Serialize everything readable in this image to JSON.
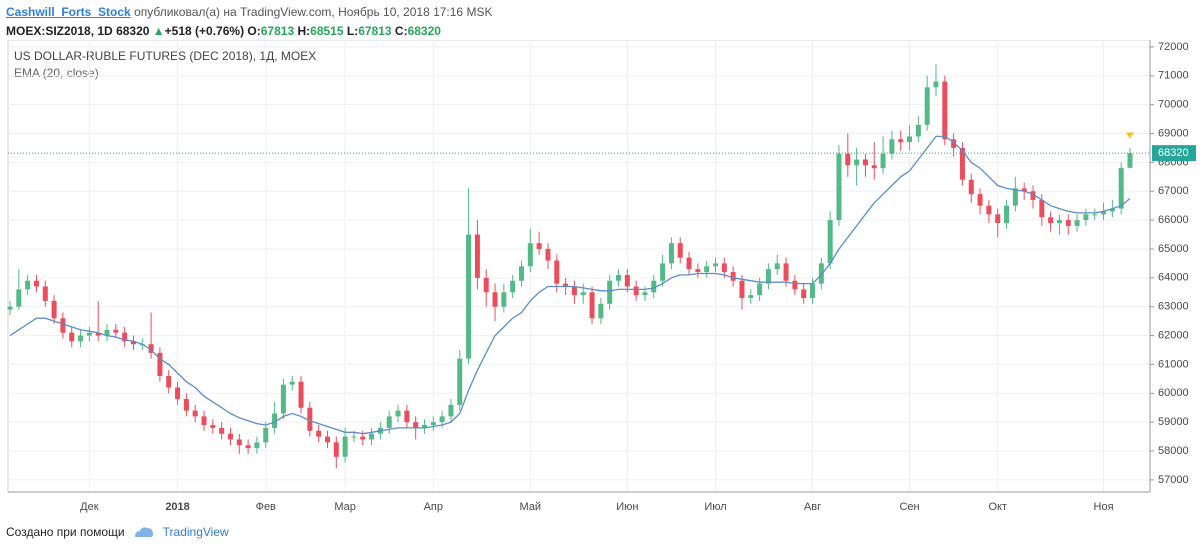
{
  "header": {
    "author": "Cashwill_Forts_Stock",
    "published": "опубликовал(а) на TradingView.com, Ноябрь 10, 2018 17:16 MSK",
    "symbol": "MOEX:SIZ2018, 1D",
    "change": "+518 (+0.76%)",
    "ohlc_labels": [
      "O:",
      "H:",
      "L:",
      "C:"
    ]
  },
  "chart_data": {
    "type": "candlestick",
    "title": "US DOLLAR-RUBLE FUTURES (DEC 2018), 1Д, MOEX",
    "categories": [
      null,
      null,
      null,
      null,
      null,
      null,
      null,
      null,
      null,
      "Дек",
      null,
      null,
      null,
      null,
      null,
      null,
      null,
      null,
      null,
      "2018",
      null,
      null,
      null,
      null,
      null,
      null,
      null,
      null,
      null,
      "Фев",
      null,
      null,
      null,
      null,
      null,
      null,
      null,
      null,
      "Мар",
      null,
      null,
      null,
      null,
      null,
      null,
      null,
      null,
      null,
      "Апр",
      null,
      null,
      null,
      null,
      null,
      null,
      null,
      null,
      null,
      null,
      "Май",
      null,
      null,
      null,
      null,
      null,
      null,
      null,
      null,
      null,
      null,
      "Июн",
      null,
      null,
      null,
      null,
      null,
      null,
      null,
      null,
      null,
      "Июл",
      null,
      null,
      null,
      null,
      null,
      null,
      null,
      null,
      null,
      null,
      "Авг",
      null,
      null,
      null,
      null,
      null,
      null,
      null,
      null,
      null,
      null,
      "Сен",
      null,
      null,
      null,
      null,
      null,
      null,
      null,
      null,
      null,
      "Окт",
      null,
      null,
      null,
      null,
      null,
      null,
      null,
      null,
      null,
      null,
      null,
      "Ноя",
      null,
      null,
      null
    ],
    "open": [
      62900,
      63000,
      63600,
      63900,
      63700,
      63200,
      62600,
      62100,
      61800,
      62000,
      62100,
      62000,
      62200,
      62100,
      61800,
      61700,
      61700,
      61400,
      60600,
      60200,
      59800,
      59400,
      59200,
      58900,
      58800,
      58600,
      58400,
      58200,
      58100,
      58300,
      58800,
      59300,
      60300,
      60400,
      59500,
      58700,
      58500,
      58300,
      57800,
      58500,
      58500,
      58400,
      58600,
      58800,
      59200,
      59400,
      59000,
      58800,
      58900,
      59000,
      59200,
      59600,
      61200,
      65500,
      64000,
      63500,
      63000,
      63500,
      63900,
      64400,
      65200,
      65000,
      64600,
      63800,
      63700,
      63400,
      63500,
      62600,
      63100,
      63900,
      64100,
      63700,
      63400,
      63500,
      63900,
      64500,
      65200,
      64700,
      64300,
      64200,
      64400,
      64500,
      64200,
      63900,
      63300,
      63400,
      63800,
      64300,
      64500,
      63900,
      63600,
      63300,
      63800,
      64500,
      66000,
      68300,
      67900,
      68100,
      67900,
      67800,
      68300,
      68800,
      68700,
      68900,
      69300,
      70600,
      70800,
      68800,
      68500,
      67400,
      66900,
      66500,
      66200,
      65900,
      66500,
      67100,
      67000,
      66700,
      66100,
      65900,
      66000,
      65800,
      66000,
      66200,
      66200,
      66300,
      66400,
      67813
    ],
    "high": [
      63200,
      64300,
      64100,
      64100,
      63900,
      63400,
      62800,
      62300,
      62200,
      62300,
      63200,
      62400,
      62400,
      62300,
      62000,
      61900,
      62800,
      61600,
      60800,
      60400,
      60000,
      59600,
      59400,
      59100,
      59000,
      58800,
      58600,
      58400,
      58500,
      59000,
      59700,
      60500,
      60600,
      60600,
      59700,
      58900,
      58700,
      58500,
      58800,
      58700,
      58700,
      58800,
      59000,
      59400,
      59600,
      59600,
      59200,
      59100,
      59200,
      59400,
      59800,
      61500,
      67100,
      66000,
      64300,
      63800,
      63800,
      64100,
      64600,
      65700,
      65600,
      65200,
      64800,
      64000,
      63900,
      63800,
      63700,
      63300,
      64100,
      64300,
      64300,
      63900,
      63700,
      64100,
      64800,
      65400,
      65400,
      64900,
      64500,
      64600,
      64700,
      64700,
      64400,
      64100,
      63600,
      64000,
      64500,
      64800,
      64700,
      64100,
      63800,
      64000,
      64700,
      66300,
      68600,
      69000,
      68500,
      68300,
      68700,
      68900,
      69100,
      69100,
      69300,
      69600,
      71000,
      71400,
      71000,
      69000,
      68700,
      67600,
      67100,
      66700,
      66400,
      66700,
      67500,
      67300,
      67200,
      66900,
      66300,
      66200,
      66200,
      66200,
      66400,
      66400,
      66600,
      66700,
      68000,
      68515
    ],
    "low": [
      62700,
      62900,
      63400,
      63500,
      63000,
      62400,
      61900,
      61600,
      61600,
      61800,
      61800,
      61800,
      61900,
      61600,
      61500,
      61500,
      61200,
      60400,
      60000,
      59600,
      59200,
      59000,
      58700,
      58600,
      58400,
      58200,
      57900,
      57900,
      57900,
      58100,
      58600,
      59100,
      60100,
      59300,
      58500,
      58300,
      58100,
      57400,
      57600,
      58300,
      58200,
      58200,
      58400,
      58600,
      59000,
      58800,
      58400,
      58600,
      58700,
      58800,
      59000,
      59400,
      61000,
      63600,
      63000,
      62500,
      62800,
      63300,
      63700,
      64200,
      64800,
      64300,
      63500,
      63400,
      63100,
      63100,
      62400,
      62400,
      62900,
      63700,
      63500,
      63200,
      63200,
      63300,
      63700,
      64300,
      64500,
      64100,
      64000,
      64000,
      64200,
      64000,
      63700,
      62900,
      63100,
      63200,
      63600,
      64100,
      63700,
      63400,
      63100,
      63100,
      63600,
      64300,
      65800,
      67500,
      67200,
      67500,
      67400,
      67600,
      68100,
      68400,
      68400,
      68700,
      69100,
      70300,
      68600,
      68200,
      67200,
      66600,
      66200,
      65900,
      65400,
      65700,
      66300,
      66700,
      66400,
      65800,
      65600,
      65500,
      65500,
      65600,
      65800,
      66000,
      66000,
      66100,
      66200,
      67813
    ],
    "close": [
      63000,
      63600,
      63900,
      63700,
      63200,
      62600,
      62100,
      61800,
      62000,
      62100,
      62000,
      62200,
      62100,
      61800,
      61700,
      61700,
      61400,
      60600,
      60200,
      59800,
      59400,
      59200,
      58900,
      58800,
      58600,
      58400,
      58200,
      58100,
      58300,
      58800,
      59300,
      60300,
      60400,
      59500,
      58700,
      58500,
      58300,
      57800,
      58500,
      58500,
      58400,
      58600,
      58800,
      59200,
      59400,
      59000,
      58800,
      58900,
      59000,
      59200,
      59600,
      61200,
      65500,
      64000,
      63500,
      63000,
      63500,
      63900,
      64400,
      65200,
      65000,
      64600,
      63800,
      63700,
      63400,
      63500,
      62600,
      63100,
      63900,
      64100,
      63700,
      63400,
      63500,
      63900,
      64500,
      65200,
      64700,
      64300,
      64200,
      64400,
      64500,
      64200,
      63900,
      63300,
      63400,
      63800,
      64300,
      64500,
      63900,
      63600,
      63300,
      63800,
      64500,
      66000,
      68300,
      67900,
      68100,
      67900,
      67800,
      68300,
      68800,
      68700,
      68900,
      69300,
      70600,
      70800,
      68800,
      68500,
      67400,
      66900,
      66500,
      66200,
      65900,
      66500,
      67100,
      67000,
      66700,
      66100,
      65900,
      66000,
      65800,
      66000,
      66200,
      66200,
      66300,
      66400,
      67802,
      68320
    ],
    "up_color": "#53b987",
    "down_color": "#eb4d5c",
    "series": [
      {
        "name": "EMA (20, close)",
        "color": "#5b8dc9",
        "values": [
          62000,
          62200,
          62400,
          62600,
          62600,
          62500,
          62400,
          62300,
          62200,
          62150,
          62100,
          62000,
          61950,
          61850,
          61800,
          61700,
          61500,
          61200,
          61000,
          60700,
          60400,
          60200,
          59900,
          59700,
          59500,
          59300,
          59150,
          59050,
          58950,
          58900,
          59000,
          59200,
          59300,
          59200,
          59050,
          58950,
          58850,
          58750,
          58650,
          58650,
          58600,
          58650,
          58700,
          58750,
          58800,
          58800,
          58800,
          58800,
          58850,
          58900,
          59000,
          59300,
          60100,
          60800,
          61400,
          62000,
          62300,
          62600,
          62800,
          63200,
          63500,
          63700,
          63700,
          63700,
          63700,
          63650,
          63600,
          63550,
          63550,
          63600,
          63600,
          63600,
          63600,
          63650,
          63800,
          64000,
          64100,
          64100,
          64150,
          64150,
          64150,
          64100,
          64000,
          63950,
          63900,
          63850,
          63850,
          63850,
          63850,
          63800,
          63800,
          63800,
          64100,
          64500,
          65000,
          65400,
          65800,
          66200,
          66600,
          66900,
          67200,
          67500,
          67700,
          68100,
          68500,
          68900,
          68900,
          68700,
          68400,
          68000,
          67800,
          67500,
          67200,
          67100,
          67050,
          67000,
          66900,
          66700,
          66500,
          66400,
          66300,
          66250,
          66250,
          66250,
          66300,
          66400,
          66500,
          66750
        ]
      }
    ],
    "ylim": [
      56580,
      72240
    ],
    "yticks": [
      57000,
      58000,
      59000,
      60000,
      61000,
      62000,
      63000,
      64000,
      65000,
      66000,
      67000,
      68000,
      69000,
      70000,
      71000,
      72000
    ],
    "grid": true,
    "price_line_color": "#26a69a"
  },
  "footer": {
    "text": "Создано при помощи",
    "brand": "TradingView"
  }
}
